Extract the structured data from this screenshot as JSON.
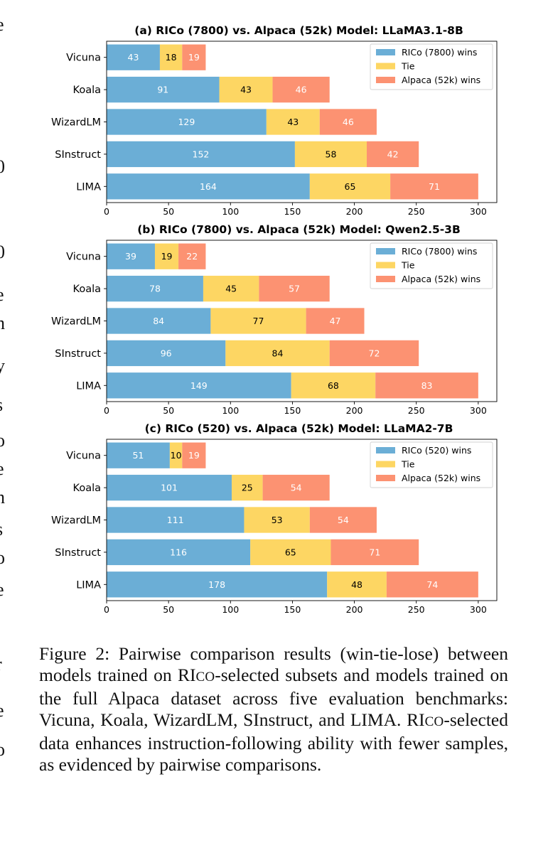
{
  "colors": {
    "wins": "#6BAED6",
    "tie": "#FDD663",
    "loss": "#FC9272",
    "label_on_wins": "#ffffff",
    "label_on_tie": "#000000",
    "label_on_loss": "#ffffff"
  },
  "chart_data": [
    {
      "type": "bar",
      "orientation": "horizontal",
      "stacked": true,
      "title": "(a) RICo (7800) vs. Alpaca (52k)  Model: LLaMA3.1-8B",
      "categories": [
        "Vicuna",
        "Koala",
        "WizardLM",
        "SInstruct",
        "LIMA"
      ],
      "series": [
        {
          "name": "RICo (7800) wins",
          "values": [
            43,
            91,
            129,
            152,
            164
          ]
        },
        {
          "name": "Tie",
          "values": [
            18,
            43,
            43,
            58,
            65
          ]
        },
        {
          "name": "Alpaca (52k) wins",
          "values": [
            19,
            46,
            46,
            42,
            71
          ]
        }
      ],
      "xlim": [
        0,
        315
      ],
      "xticks": [
        0,
        50,
        100,
        150,
        200,
        250,
        300
      ],
      "legend": "top-right",
      "grid": false
    },
    {
      "type": "bar",
      "orientation": "horizontal",
      "stacked": true,
      "title": "(b) RICo (7800) vs. Alpaca (52k)  Model: Qwen2.5-3B",
      "categories": [
        "Vicuna",
        "Koala",
        "WizardLM",
        "SInstruct",
        "LIMA"
      ],
      "series": [
        {
          "name": "RICo (7800) wins",
          "values": [
            39,
            78,
            84,
            96,
            149
          ]
        },
        {
          "name": "Tie",
          "values": [
            19,
            45,
            77,
            84,
            68
          ]
        },
        {
          "name": "Alpaca (52k) wins",
          "values": [
            22,
            57,
            47,
            72,
            83
          ]
        }
      ],
      "xlim": [
        0,
        315
      ],
      "xticks": [
        0,
        50,
        100,
        150,
        200,
        250,
        300
      ],
      "legend": "top-right",
      "grid": false
    },
    {
      "type": "bar",
      "orientation": "horizontal",
      "stacked": true,
      "title": "(c) RICo (520) vs. Alpaca (52k)  Model: LLaMA2-7B",
      "categories": [
        "Vicuna",
        "Koala",
        "WizardLM",
        "SInstruct",
        "LIMA"
      ],
      "series": [
        {
          "name": "RICo (520) wins",
          "values": [
            51,
            101,
            111,
            116,
            178
          ]
        },
        {
          "name": "Tie",
          "values": [
            10,
            25,
            53,
            65,
            48
          ]
        },
        {
          "name": "Alpaca (52k) wins",
          "values": [
            19,
            54,
            54,
            71,
            74
          ]
        }
      ],
      "xlim": [
        0,
        315
      ],
      "xticks": [
        0,
        50,
        100,
        150,
        200,
        250,
        300
      ],
      "legend": "top-right",
      "grid": false
    }
  ],
  "caption": {
    "prefix": "Figure 2:  Pairwise comparison results (win-tie-lose) between models trained on RI",
    "rico_sc": "CO",
    "middle": "-selected subsets and models trained on the full Alpaca dataset across five evaluation benchmarks:  Vicuna, Koala, WizardLM, SInstruct, and LIMA. RI",
    "middle_sc": "CO",
    "suffix": "-selected data enhances instruction-following ability with fewer samples, as evidenced by pairwise comparisons."
  },
  "edge_glyphs": [
    "e",
    "0",
    "0",
    "e",
    "n",
    "y",
    "s",
    "o",
    "e",
    "n",
    "s",
    "o",
    "e",
    "r",
    "e",
    "o"
  ]
}
